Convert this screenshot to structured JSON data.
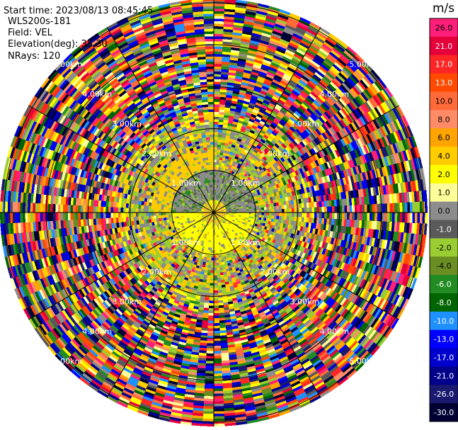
{
  "header": {
    "start_time": "Start time: 2023/08/13 08:45:45",
    "instrument": "WLS200s-181",
    "field": "Field: VEL",
    "elevation": "Elevation(deg): 35.30",
    "nrays": "NRays: 120"
  },
  "chart_data": {
    "type": "heatmap",
    "projection": "polar-ppi",
    "field": "VEL",
    "units": "m/s",
    "n_rays": 120,
    "range_rings_km": [
      1,
      2,
      3,
      4,
      5
    ],
    "range_ring_labels": [
      "1.00km",
      "2.00km",
      "3.00km",
      "4.00km",
      "5.00km"
    ],
    "spokes_deg": [
      0,
      30,
      60,
      90,
      120,
      150,
      180,
      210,
      240,
      270,
      300,
      330
    ],
    "max_range_km": 5.1,
    "colorbar": {
      "ticks": [
        "26.0",
        "21.0",
        "17.0",
        "13.0",
        "10.0",
        "8.0",
        "6.0",
        "4.0",
        "2.0",
        "1.0",
        "0.0",
        "-1.0",
        "-2.0",
        "-4.0",
        "-6.0",
        "-8.0",
        "-10.0",
        "-13.0",
        "-17.0",
        "-21.0",
        "-26.0",
        "-30.0"
      ],
      "colors": [
        "#ff1f7a",
        "#e6003a",
        "#ff2626",
        "#ff4a00",
        "#ff6a3a",
        "#ff8c66",
        "#ffa400",
        "#ffcc00",
        "#ffff00",
        "#ffff99",
        "#8c8c8c",
        "#5a5a5a",
        "#9acd32",
        "#6b8e23",
        "#228b22",
        "#006400",
        "#1e90ff",
        "#0000ff",
        "#0000cd",
        "#00008b",
        "#191970",
        "#000033"
      ]
    },
    "description_data": {
      "inner_region_km": [
        0,
        1
      ],
      "inner_dominant": [
        "#ffff00",
        "#ffcc00",
        "#9acd32",
        "#8c8c8c"
      ],
      "mid_region_km": [
        1,
        2
      ],
      "mid_dominant": [
        "#9acd32",
        "#8c8c8c",
        "#ffcc00"
      ],
      "outer_region_km": [
        2,
        5.1
      ],
      "outer_character": "noise"
    }
  }
}
